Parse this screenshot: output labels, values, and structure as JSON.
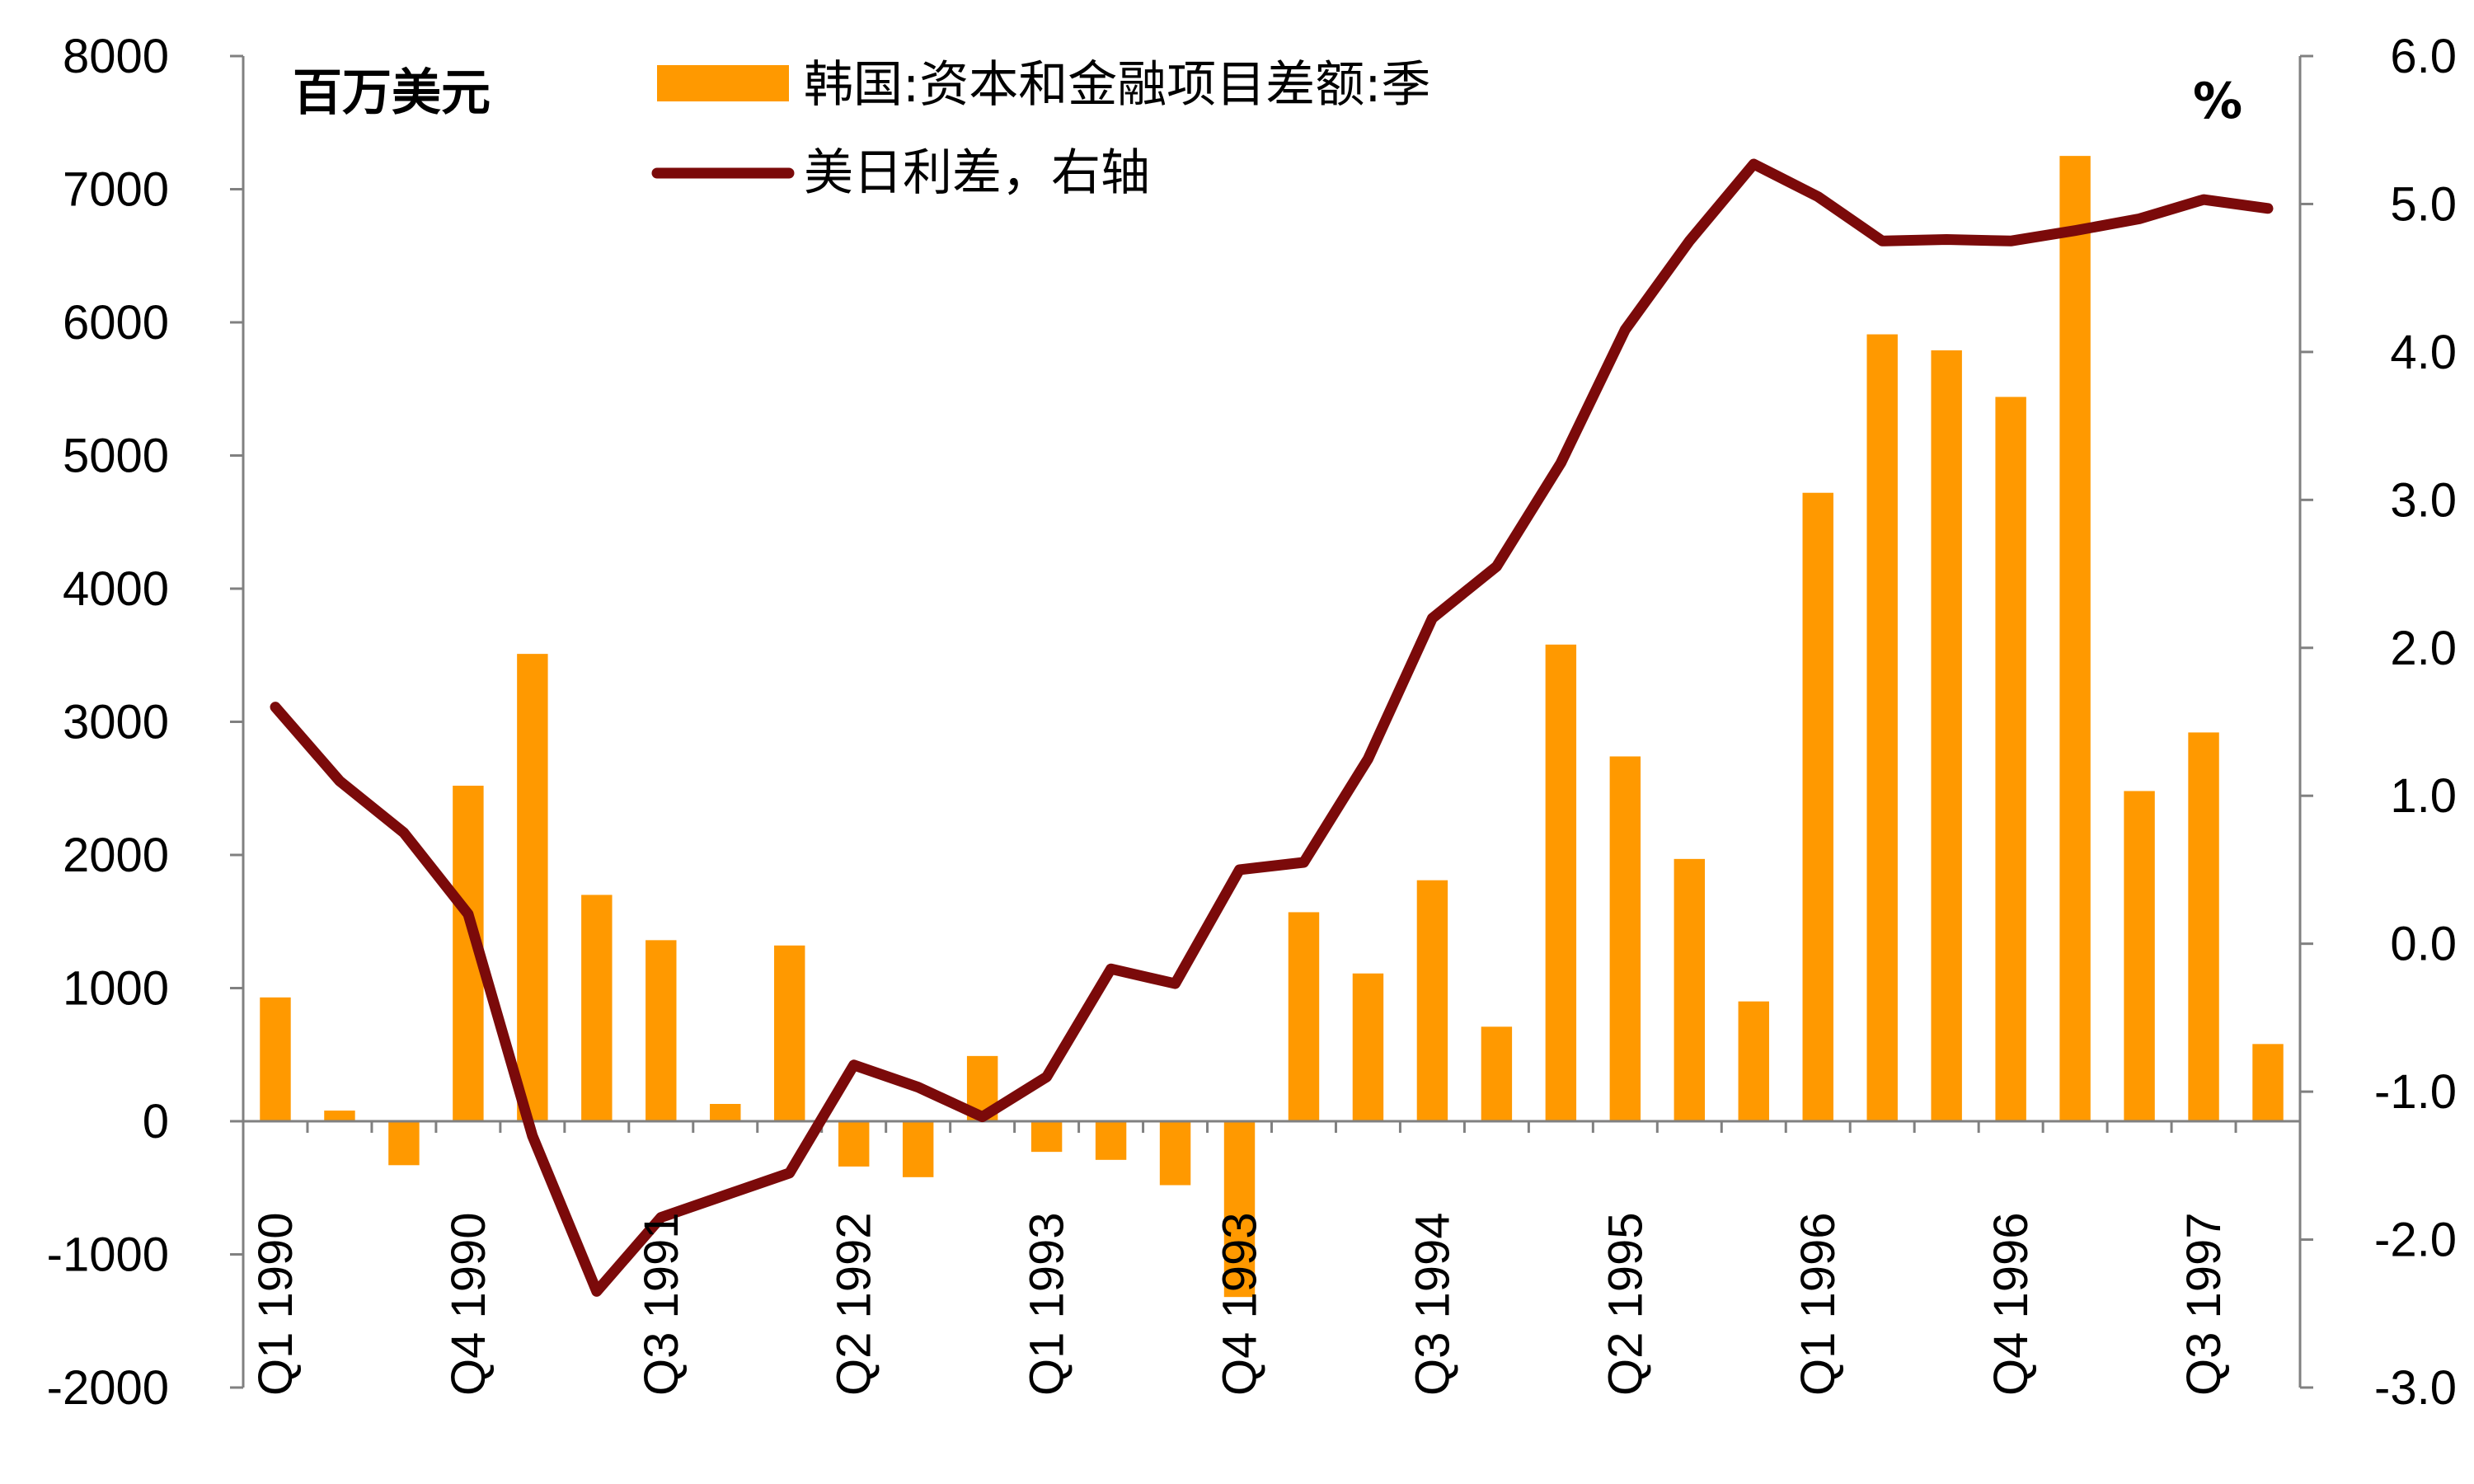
{
  "chart_data": {
    "type": "bar",
    "left_unit": "百万美元",
    "right_unit": "%",
    "legend": [
      {
        "label": "韩国:资本和金融项目差额:季",
        "color": "#FF9900"
      },
      {
        "label": "美日利差，右轴",
        "color": "#7B0A0A"
      }
    ],
    "categories": [
      "Q1 1990",
      "Q2 1990",
      "Q3 1990",
      "Q4 1990",
      "Q1 1991",
      "Q2 1991",
      "Q3 1991",
      "Q4 1991",
      "Q1 1992",
      "Q2 1992",
      "Q3 1992",
      "Q4 1992",
      "Q1 1993",
      "Q2 1993",
      "Q3 1993",
      "Q4 1993",
      "Q1 1994",
      "Q2 1994",
      "Q3 1994",
      "Q4 1994",
      "Q1 1995",
      "Q2 1995",
      "Q3 1995",
      "Q4 1995",
      "Q1 1996",
      "Q2 1996",
      "Q3 1996",
      "Q4 1996",
      "Q1 1997",
      "Q2 1997",
      "Q3 1997",
      "Q4 1997"
    ],
    "x_tick_labels": [
      "Q1 1990",
      "Q4 1990",
      "Q3 1991",
      "Q2 1992",
      "Q1 1993",
      "Q4 1993",
      "Q3 1994",
      "Q2 1995",
      "Q1 1996",
      "Q4 1996",
      "Q3 1997"
    ],
    "x_tick_indices": [
      0,
      3,
      6,
      9,
      12,
      15,
      18,
      21,
      24,
      27,
      30
    ],
    "series": [
      {
        "name": "韩国:资本和金融项目差额:季",
        "type": "bar",
        "axis": "left",
        "color": "#FF9900",
        "values": [
          930,
          80,
          -330,
          2520,
          3510,
          1700,
          1360,
          130,
          1320,
          -340,
          -420,
          490,
          -230,
          -290,
          -480,
          -1320,
          1570,
          1110,
          1810,
          710,
          3580,
          2740,
          1970,
          900,
          4720,
          5910,
          5790,
          5440,
          7250,
          2480,
          2920,
          580
        ]
      },
      {
        "name": "美日利差，右轴",
        "type": "line",
        "axis": "right",
        "color": "#7B0A0A",
        "values": [
          1.6,
          1.1,
          0.75,
          0.2,
          -1.3,
          -2.35,
          -1.85,
          -1.7,
          -1.55,
          -0.82,
          -0.97,
          -1.17,
          -0.9,
          -0.17,
          -0.27,
          0.5,
          0.55,
          1.25,
          2.2,
          2.55,
          3.25,
          4.15,
          4.75,
          5.27,
          5.05,
          4.75,
          4.76,
          4.75,
          4.82,
          4.9,
          5.03,
          4.97
        ]
      }
    ],
    "y_left": {
      "min": -2000,
      "max": 8000,
      "ticks": [
        "8000",
        "7000",
        "6000",
        "5000",
        "4000",
        "3000",
        "2000",
        "1000",
        "0",
        "-1000",
        "-2000"
      ]
    },
    "y_right": {
      "min": -3.0,
      "max": 6.0,
      "ticks": [
        "6.0",
        "5.0",
        "4.0",
        "3.0",
        "2.0",
        "1.0",
        "0.0",
        "-1.0",
        "-2.0",
        "-3.0"
      ]
    }
  }
}
